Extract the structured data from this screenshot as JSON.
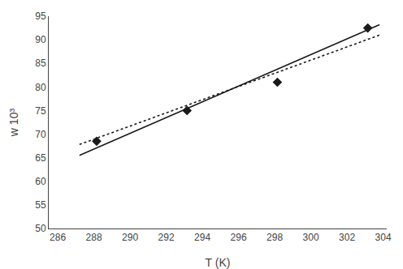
{
  "chart_data": {
    "type": "line",
    "xlabel": "T (K)",
    "ylabel": "w 10³",
    "series": [
      {
        "type": "line",
        "line_style": "solid",
        "color": "#1a1a1a",
        "x": [
          287.2,
          303.8
        ],
        "values": [
          65.5,
          93.2
        ]
      },
      {
        "type": "line",
        "line_style": "dotted",
        "color": "#1a1a1a",
        "x": [
          287.2,
          303.8
        ],
        "values": [
          67.8,
          91.0
        ]
      },
      {
        "type": "scatter",
        "marker": "diamond",
        "color": "#1a1a1a",
        "x": [
          288.15,
          293.15,
          298.15,
          303.15
        ],
        "values": [
          68.5,
          75.0,
          81.0,
          92.5
        ]
      }
    ],
    "xlim": [
      285.5,
      304.2
    ],
    "ylim": [
      50,
      95
    ],
    "xticks": [
      286,
      288,
      290,
      292,
      294,
      296,
      298,
      300,
      302,
      304
    ],
    "yticks": [
      50,
      55,
      60,
      65,
      70,
      75,
      80,
      85,
      90,
      95
    ],
    "grid": false
  }
}
